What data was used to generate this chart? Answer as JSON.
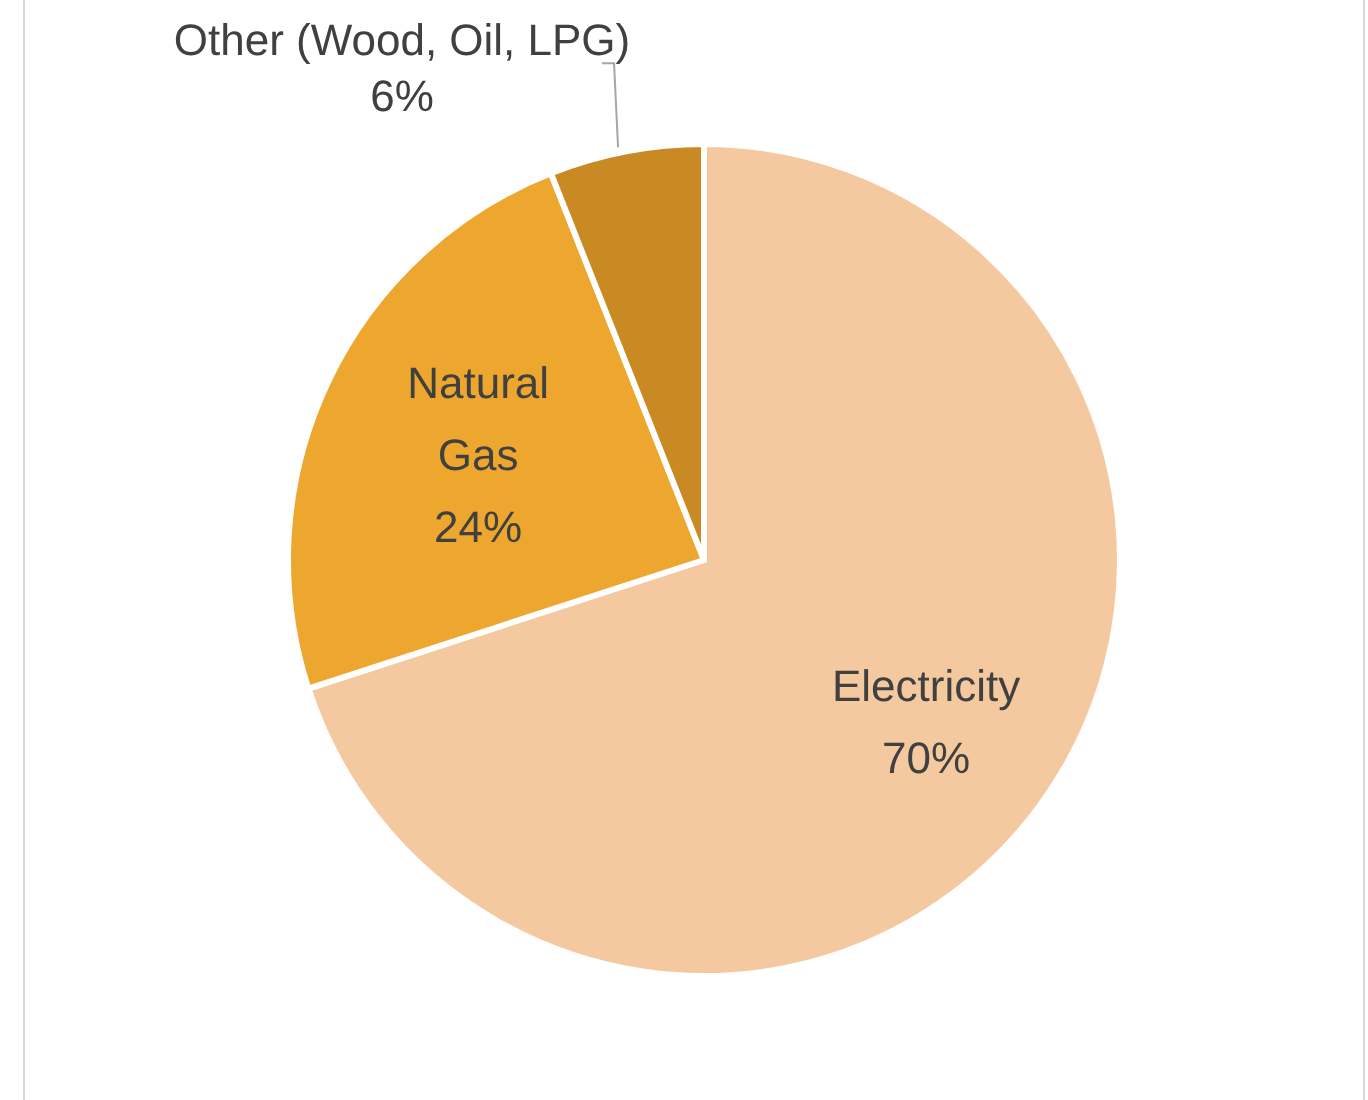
{
  "chart_data": {
    "type": "pie",
    "categories": [
      "Electricity",
      "Natural Gas",
      "Other (Wood, Oil, LPG)"
    ],
    "values": [
      70,
      24,
      6
    ],
    "value_labels": [
      "70%",
      "24%",
      "6%"
    ],
    "colors": [
      "#f5c9a0",
      "#eda72f",
      "#c98a24"
    ]
  }
}
